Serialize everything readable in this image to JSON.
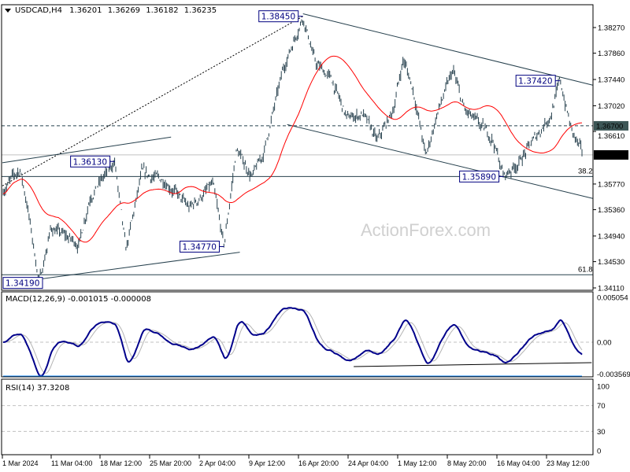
{
  "chart_data": {
    "type": "ohlc-bar",
    "header": {
      "symbol": "USDCAD,H4",
      "open": "1.36201",
      "high": "1.36269",
      "low": "1.36182",
      "close": "1.36235"
    },
    "watermark": "ActionForex.com",
    "colors": {
      "bars": "#26404d",
      "ma": "#ff0000",
      "macd": "#00008b",
      "signal": "#b4b4b4",
      "rsi": "#1e90ff",
      "label": "#000080"
    },
    "price_axis": {
      "range": [
        1.3403,
        1.3863
      ],
      "ticks": [
        "1.38270",
        "1.37860",
        "1.37440",
        "1.37020",
        "1.36610",
        "1.35770",
        "1.35360",
        "1.34940",
        "1.34530",
        "1.34110"
      ]
    },
    "time_axis": {
      "ticks": [
        {
          "label": "1 Mar 2024",
          "date": "2024-03-01T00:00"
        },
        {
          "label": "11 Mar 04:00",
          "date": "2024-03-11T04:00"
        },
        {
          "label": "18 Mar 12:00",
          "date": "2024-03-18T12:00"
        },
        {
          "label": "25 Mar 20:00",
          "date": "2024-03-25T20:00"
        },
        {
          "label": "2 Apr 04:00",
          "date": "2024-04-02T04:00"
        },
        {
          "label": "9 Apr 12:00",
          "date": "2024-04-09T12:00"
        },
        {
          "label": "16 Apr 20:00",
          "date": "2024-04-16T20:00"
        },
        {
          "label": "24 Apr 04:00",
          "date": "2024-04-24T04:00"
        },
        {
          "label": "1 May 12:00",
          "date": "2024-05-01T12:00"
        },
        {
          "label": "8 May 20:00",
          "date": "2024-05-08T20:00"
        },
        {
          "label": "16 May 04:00",
          "date": "2024-05-16T04:00"
        },
        {
          "label": "23 May 12:00",
          "date": "2024-05-23T12:00"
        }
      ]
    },
    "price_path": [
      [
        "2024-03-01T08:00",
        1.3569
      ],
      [
        "2024-03-04T16:00",
        1.3601
      ],
      [
        "2024-03-06T04:00",
        1.3544
      ],
      [
        "2024-03-08T16:00",
        1.3419
      ],
      [
        "2024-03-11T04:00",
        1.3507
      ],
      [
        "2024-03-15T08:00",
        1.3481
      ],
      [
        "2024-03-17T00:00",
        1.3557
      ],
      [
        "2024-03-20T16:00",
        1.3613
      ],
      [
        "2024-03-22T08:00",
        1.3469
      ],
      [
        "2024-03-24T16:00",
        1.3594
      ],
      [
        "2024-03-28T04:00",
        1.3582
      ],
      [
        "2024-03-31T16:00",
        1.3538
      ],
      [
        "2024-04-04T04:00",
        1.3576
      ],
      [
        "2024-04-05T20:00",
        1.3477
      ],
      [
        "2024-04-07T16:00",
        1.3632
      ],
      [
        "2024-04-10T00:00",
        1.3588
      ],
      [
        "2024-04-11T16:00",
        1.3626
      ],
      [
        "2024-04-14T16:00",
        1.3764
      ],
      [
        "2024-04-17T12:00",
        1.3845
      ],
      [
        "2024-04-19T08:00",
        1.377
      ],
      [
        "2024-04-21T16:00",
        1.3745
      ],
      [
        "2024-04-24T00:00",
        1.3682
      ],
      [
        "2024-04-26T08:00",
        1.3689
      ],
      [
        "2024-04-28T12:00",
        1.3645
      ],
      [
        "2024-04-30T20:00",
        1.3695
      ],
      [
        "2024-05-02T08:00",
        1.3777
      ],
      [
        "2024-05-03T20:00",
        1.3726
      ],
      [
        "2024-05-05T16:00",
        1.362
      ],
      [
        "2024-05-07T08:00",
        1.3689
      ],
      [
        "2024-05-09T16:00",
        1.3758
      ],
      [
        "2024-05-11T08:00",
        1.3695
      ],
      [
        "2024-05-13T16:00",
        1.367
      ],
      [
        "2024-05-15T12:00",
        1.3651
      ],
      [
        "2024-05-17T04:00",
        1.3589
      ],
      [
        "2024-05-19T12:00",
        1.3613
      ],
      [
        "2024-05-21T20:00",
        1.3651
      ],
      [
        "2024-05-24T04:00",
        1.3689
      ],
      [
        "2024-05-25T12:00",
        1.3742
      ],
      [
        "2024-05-27T04:00",
        1.3664
      ],
      [
        "2024-05-28T20:00",
        1.36235
      ]
    ],
    "swing_labels": [
      {
        "text": "1.38450",
        "date": "2024-04-17T12:00",
        "price": 1.3845
      },
      {
        "text": "1.36130",
        "date": "2024-03-20T16:00",
        "price": 1.3613
      },
      {
        "text": "1.34770",
        "date": "2024-04-05T20:00",
        "price": 1.3477
      },
      {
        "text": "1.34190",
        "date": "2024-03-08T16:00",
        "price": 1.3419
      },
      {
        "text": "1.35890",
        "date": "2024-05-17T04:00",
        "price": 1.3589
      },
      {
        "text": "1.37420",
        "date": "2024-05-25T12:00",
        "price": 1.3742
      }
    ],
    "levels": [
      {
        "price": 1.367,
        "label": "1.36700",
        "style": "dashed"
      },
      {
        "price": 1.36235,
        "label": "1.36235",
        "style": "current"
      },
      {
        "price": 1.3589,
        "fib": "38.2",
        "style": "solid"
      },
      {
        "price": 1.3432,
        "fib": "61.8",
        "style": "solid"
      }
    ],
    "trendlines": [
      {
        "from": [
          "2024-03-01T00:00",
          1.3574
        ],
        "to": [
          "2024-04-17T12:00",
          1.3845
        ],
        "style": "dotted"
      },
      {
        "from": [
          "2024-03-01T00:00",
          1.3611
        ],
        "to": [
          "2024-03-29T00:00",
          1.3652
        ],
        "style": "solid"
      },
      {
        "from": [
          "2024-03-08T16:00",
          1.3425
        ],
        "to": [
          "2024-04-08T04:00",
          1.3468
        ],
        "style": "solid"
      },
      {
        "from": [
          "2024-04-17T12:00",
          1.3849
        ],
        "to": [
          "2024-05-30T08:00",
          1.3735
        ],
        "style": "solid"
      },
      {
        "from": [
          "2024-04-15T04:00",
          1.3672
        ],
        "to": [
          "2024-05-30T08:00",
          1.3554
        ],
        "style": "solid"
      }
    ],
    "macd": {
      "label": "MACD(12,26,9) -0.001015 -0.000008",
      "range": [
        -0.003569,
        0.005054
      ],
      "ticks": [
        "0.005054",
        "0.00",
        "-0.003569"
      ],
      "support_line": {
        "from": [
          "2024-04-25T00:00",
          -0.00275
        ],
        "to": [
          "2024-05-30T04:00",
          -0.0023
        ]
      }
    },
    "rsi": {
      "label": "RSI(14) 37.3208",
      "range": [
        0,
        100
      ],
      "ticks": [
        "100",
        "70",
        "30",
        "0"
      ]
    }
  }
}
